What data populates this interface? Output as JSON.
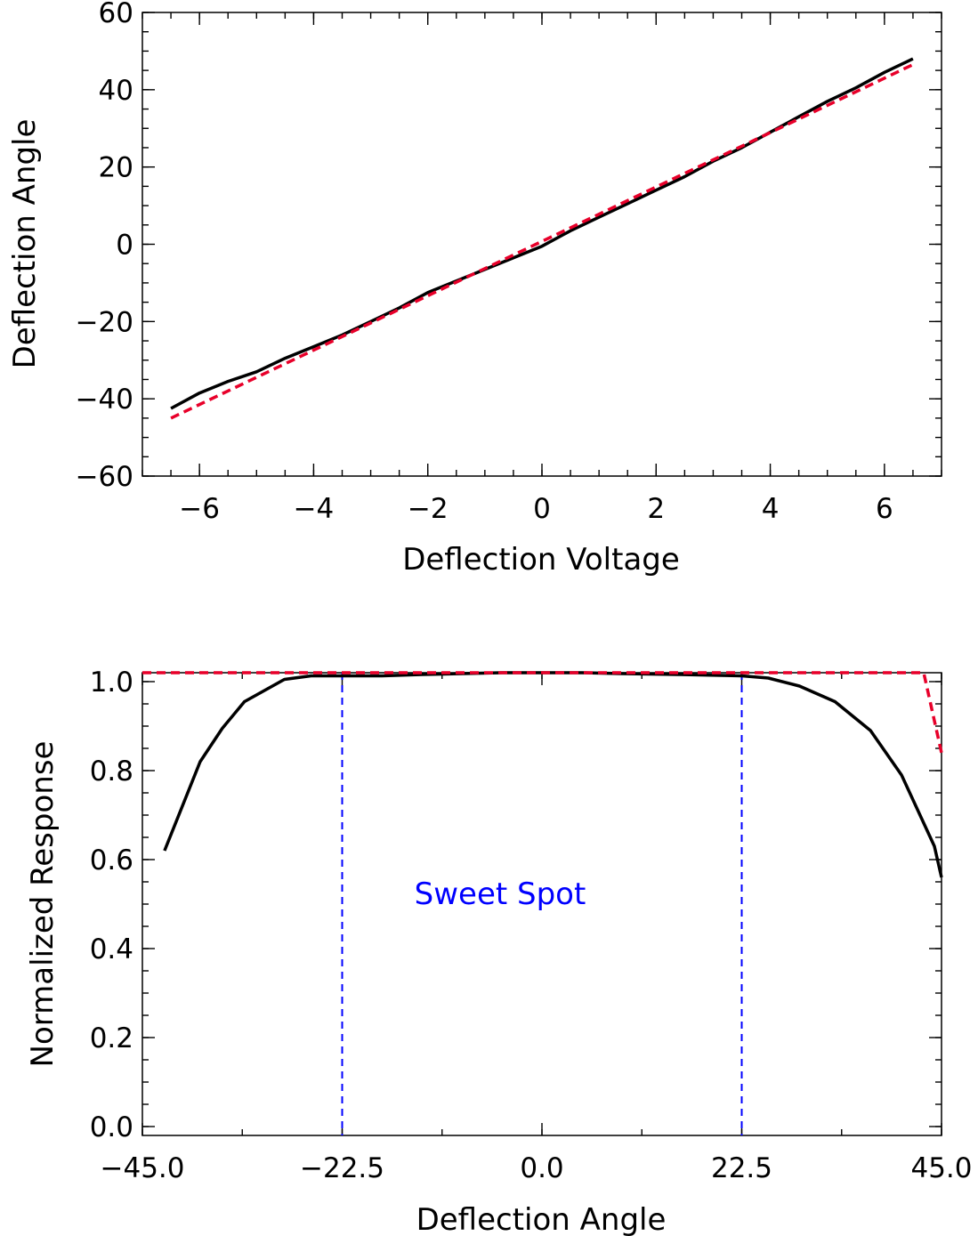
{
  "chart_data": [
    {
      "type": "line",
      "title": "",
      "xlabel": "Deflection Voltage",
      "ylabel": "Deflection Angle",
      "xlim": [
        -7,
        7
      ],
      "ylim": [
        -60,
        60
      ],
      "xticks": [
        -6,
        -4,
        -2,
        0,
        2,
        4,
        6
      ],
      "xtick_labels": [
        "−6",
        "−4",
        "−2",
        "0",
        "2",
        "4",
        "6"
      ],
      "yticks": [
        -60,
        -40,
        -20,
        0,
        20,
        40,
        60
      ],
      "ytick_labels": [
        "−60",
        "−40",
        "−20",
        "0",
        "20",
        "40",
        "60"
      ],
      "grid": false,
      "series": [
        {
          "style": "solid",
          "color": "#000000",
          "x": [
            -6.5,
            -6.0,
            -5.5,
            -5.0,
            -4.5,
            -4.0,
            -3.5,
            -3.0,
            -2.5,
            -2.0,
            -1.5,
            -1.0,
            -0.5,
            0.0,
            0.5,
            1.0,
            1.5,
            2.0,
            2.5,
            3.0,
            3.5,
            4.0,
            4.5,
            5.0,
            5.5,
            6.0,
            6.5
          ],
          "y": [
            -42.5,
            -38.5,
            -35.5,
            -33.0,
            -29.5,
            -26.5,
            -23.5,
            -20.0,
            -16.5,
            -12.5,
            -9.5,
            -6.5,
            -3.5,
            -0.5,
            3.5,
            7.0,
            10.5,
            14.0,
            17.5,
            21.5,
            25.0,
            29.0,
            33.0,
            37.0,
            40.5,
            44.5,
            48.0
          ]
        },
        {
          "style": "dashed",
          "color": "#e8002a",
          "x": [
            -6.5,
            6.5
          ],
          "y": [
            -45.0,
            46.5
          ]
        }
      ]
    },
    {
      "type": "line",
      "title": "",
      "xlabel": "Deflection Angle",
      "ylabel": "Normalized Response",
      "xlim": [
        -45,
        45
      ],
      "ylim": [
        -0.02,
        1.02
      ],
      "xticks": [
        -45,
        -22.5,
        0,
        22.5,
        45
      ],
      "xtick_labels": [
        "−45.0",
        "−22.5",
        "0.0",
        "22.5",
        "45.0"
      ],
      "yticks": [
        0.0,
        0.2,
        0.4,
        0.6,
        0.8,
        1.0
      ],
      "ytick_labels": [
        "0.0",
        "0.2",
        "0.4",
        "0.6",
        "0.8",
        "1.0"
      ],
      "grid": false,
      "annotation": "Sweet Spot",
      "annotation_color": "#0000ff",
      "vlines": [
        -22.5,
        22.5
      ],
      "series": [
        {
          "style": "solid",
          "color": "#000000",
          "x": [
            -42.5,
            -38.5,
            -36,
            -33.5,
            -29,
            -26,
            -22.5,
            -18,
            -13.5,
            -9,
            -4.5,
            0,
            4.5,
            9,
            15.5,
            22.5,
            25.5,
            29,
            33,
            37,
            40.5,
            44.2,
            45
          ],
          "y": [
            0.62,
            0.82,
            0.895,
            0.955,
            1.005,
            1.013,
            1.013,
            1.013,
            1.016,
            1.018,
            1.02,
            1.02,
            1.02,
            1.018,
            1.016,
            1.013,
            1.008,
            0.99,
            0.955,
            0.89,
            0.79,
            0.63,
            0.56
          ]
        },
        {
          "style": "dashed",
          "color": "#e8002a",
          "x": [
            -45,
            43,
            45
          ],
          "y": [
            1.02,
            1.02,
            0.84
          ]
        }
      ]
    }
  ]
}
